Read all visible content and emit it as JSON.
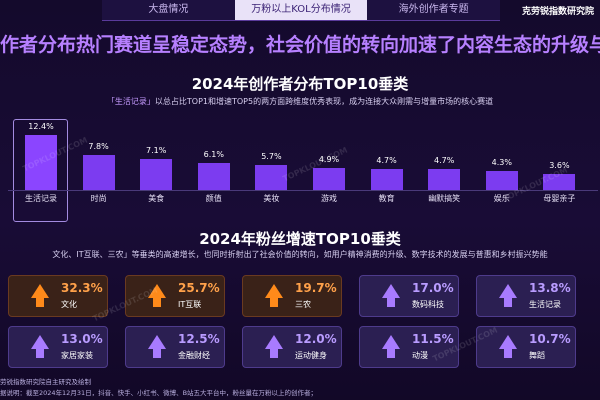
{
  "tabs": [
    "大盘情况",
    "万粉以上KOL分布情况",
    "海外创作者专题"
  ],
  "brand": "克劳锐指数研究院",
  "headline": "作者分布热门赛道呈稳定态势，社会价值的转向加速了内容生态的升级与重构",
  "section1": {
    "title": "2024年创作者分布TOP10垂类",
    "subtitle_hl": "「生活记录」",
    "subtitle_rest": "以总占比TOP1和增速TOP5的两方面跨维度优秀表现，成为连接大众刚需与增量市场的核心赛道"
  },
  "chart_data": {
    "type": "bar",
    "title": "2024年创作者分布TOP10垂类",
    "categories": [
      "生活记录",
      "时尚",
      "美食",
      "颜值",
      "美妆",
      "游戏",
      "教育",
      "幽默搞笑",
      "娱乐",
      "母婴亲子"
    ],
    "values": [
      12.4,
      7.8,
      7.1,
      6.1,
      5.7,
      4.9,
      4.7,
      4.7,
      4.3,
      3.6
    ],
    "value_labels": [
      "12.4%",
      "7.8%",
      "7.1%",
      "6.1%",
      "5.7%",
      "4.9%",
      "4.7%",
      "4.7%",
      "4.3%",
      "3.6%"
    ],
    "highlight_index": 0,
    "ylim": [
      0,
      12.4
    ],
    "color": "#7c3cf0"
  },
  "section2": {
    "title": "2024年粉丝增速TOP10垂类",
    "subtitle": "文化、IT互联、三农」等垂类的高速增长，也同时折射出了社会价值的转向，如用户精神消费的升级、数字技术的发展与普惠和乡村振兴势能"
  },
  "growth_cards": [
    {
      "value": "32.3%",
      "label": "文化",
      "tone": "warm"
    },
    {
      "value": "25.7%",
      "label": "IT互联",
      "tone": "warm"
    },
    {
      "value": "19.7%",
      "label": "三农",
      "tone": "warm"
    },
    {
      "value": "17.0%",
      "label": "数码科技",
      "tone": "cool"
    },
    {
      "value": "13.8%",
      "label": "生活记录",
      "tone": "cool"
    },
    {
      "value": "13.0%",
      "label": "家居家装",
      "tone": "cool"
    },
    {
      "value": "12.5%",
      "label": "金融财经",
      "tone": "cool"
    },
    {
      "value": "12.0%",
      "label": "运动健身",
      "tone": "cool"
    },
    {
      "value": "11.5%",
      "label": "动漫",
      "tone": "cool"
    },
    {
      "value": "10.7%",
      "label": "舞蹈",
      "tone": "cool"
    }
  ],
  "footer": {
    "line1": "劳锐指数研究院自主研究及绘制",
    "line2": "据说明：截至2024年12月31日，抖音、快手、小红书、微博、B站五大平台中，粉丝量在万粉以上的创作者；"
  },
  "watermark": "TOPKLOUT.COM",
  "colors": {
    "accent": "#b780ff",
    "bar": "#7c3cf0",
    "warm": "#ff8a1a",
    "cool": "#a87bff"
  }
}
